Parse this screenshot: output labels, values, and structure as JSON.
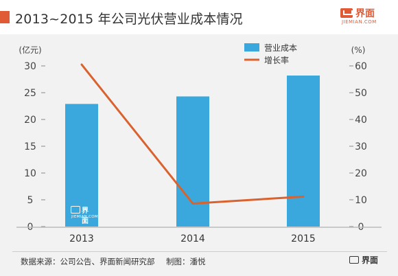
{
  "header": {
    "title": "2013~2015 年公司光伏营业成本情况",
    "accent_color": "#e15a36"
  },
  "logo": {
    "icon": "jiemian-logo-icon",
    "name_cn": "界面",
    "name_en": "JIEMIAN.COM",
    "color": "#e15a36"
  },
  "footer": {
    "source": "数据来源：公司公告、界面新闻研究部",
    "credit": "制图：潘悦",
    "logo_cn": "界面"
  },
  "chart_data": {
    "type": "bar",
    "categories": [
      "2013",
      "2014",
      "2015"
    ],
    "series": [
      {
        "name": "营业成本",
        "kind": "bar",
        "axis": "left",
        "color": "#3aa8dc",
        "values": [
          22.9,
          24.3,
          28.2
        ]
      },
      {
        "name": "增长率",
        "kind": "line",
        "axis": "right",
        "color": "#d9622e",
        "values": [
          60.5,
          8.6,
          11.2
        ]
      }
    ],
    "y_left": {
      "unit": "(亿元)",
      "min": 0,
      "max": 30,
      "ticks": [
        0,
        5,
        10,
        15,
        20,
        25,
        30
      ]
    },
    "y_right": {
      "unit": "(%)",
      "min": 0,
      "max": 60,
      "ticks": [
        0,
        10,
        20,
        30,
        40,
        50,
        60
      ]
    },
    "grid": false,
    "legend": "top-right"
  }
}
